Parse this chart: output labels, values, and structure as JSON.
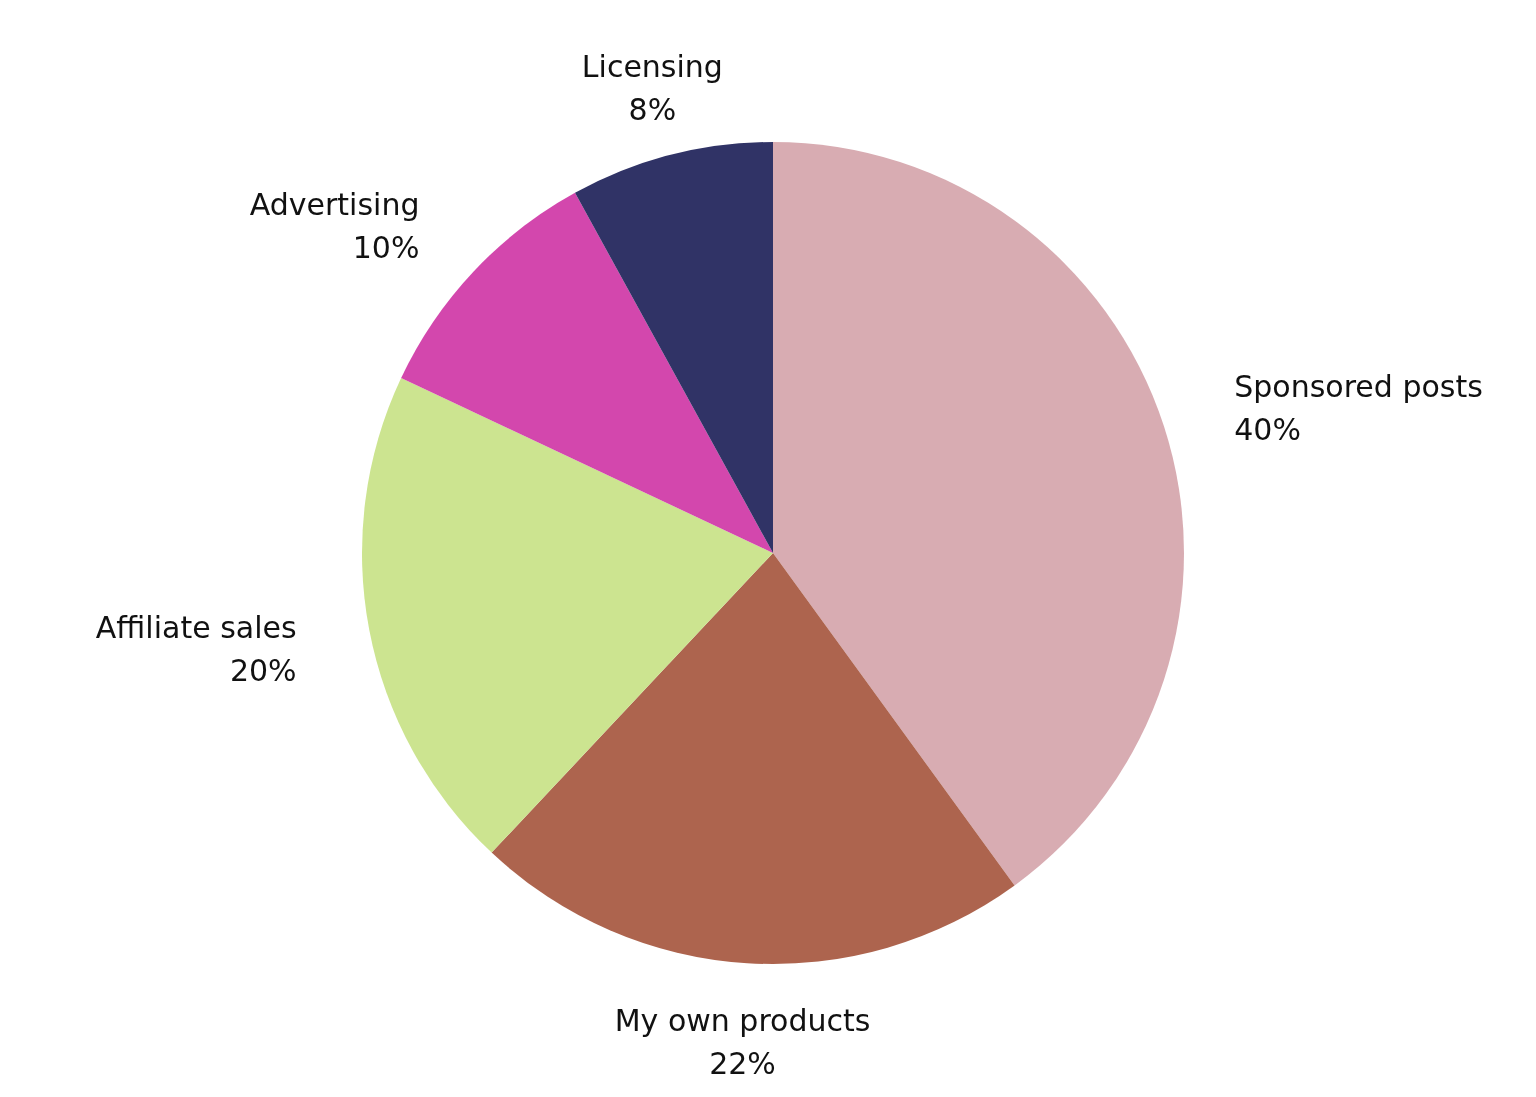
{
  "chart_data": {
    "type": "pie",
    "categories": [
      "Sponsored posts",
      "My own products",
      "Affiliate sales",
      "Advertising",
      "Licensing"
    ],
    "values": [
      40,
      22,
      20,
      10,
      8
    ],
    "value_labels": [
      "40%",
      "22%",
      "20%",
      "10%",
      "8%"
    ],
    "colors": [
      "#d8acb2",
      "#ad644e",
      "#cce490",
      "#d347ad",
      "#303366"
    ],
    "legend": false
  }
}
